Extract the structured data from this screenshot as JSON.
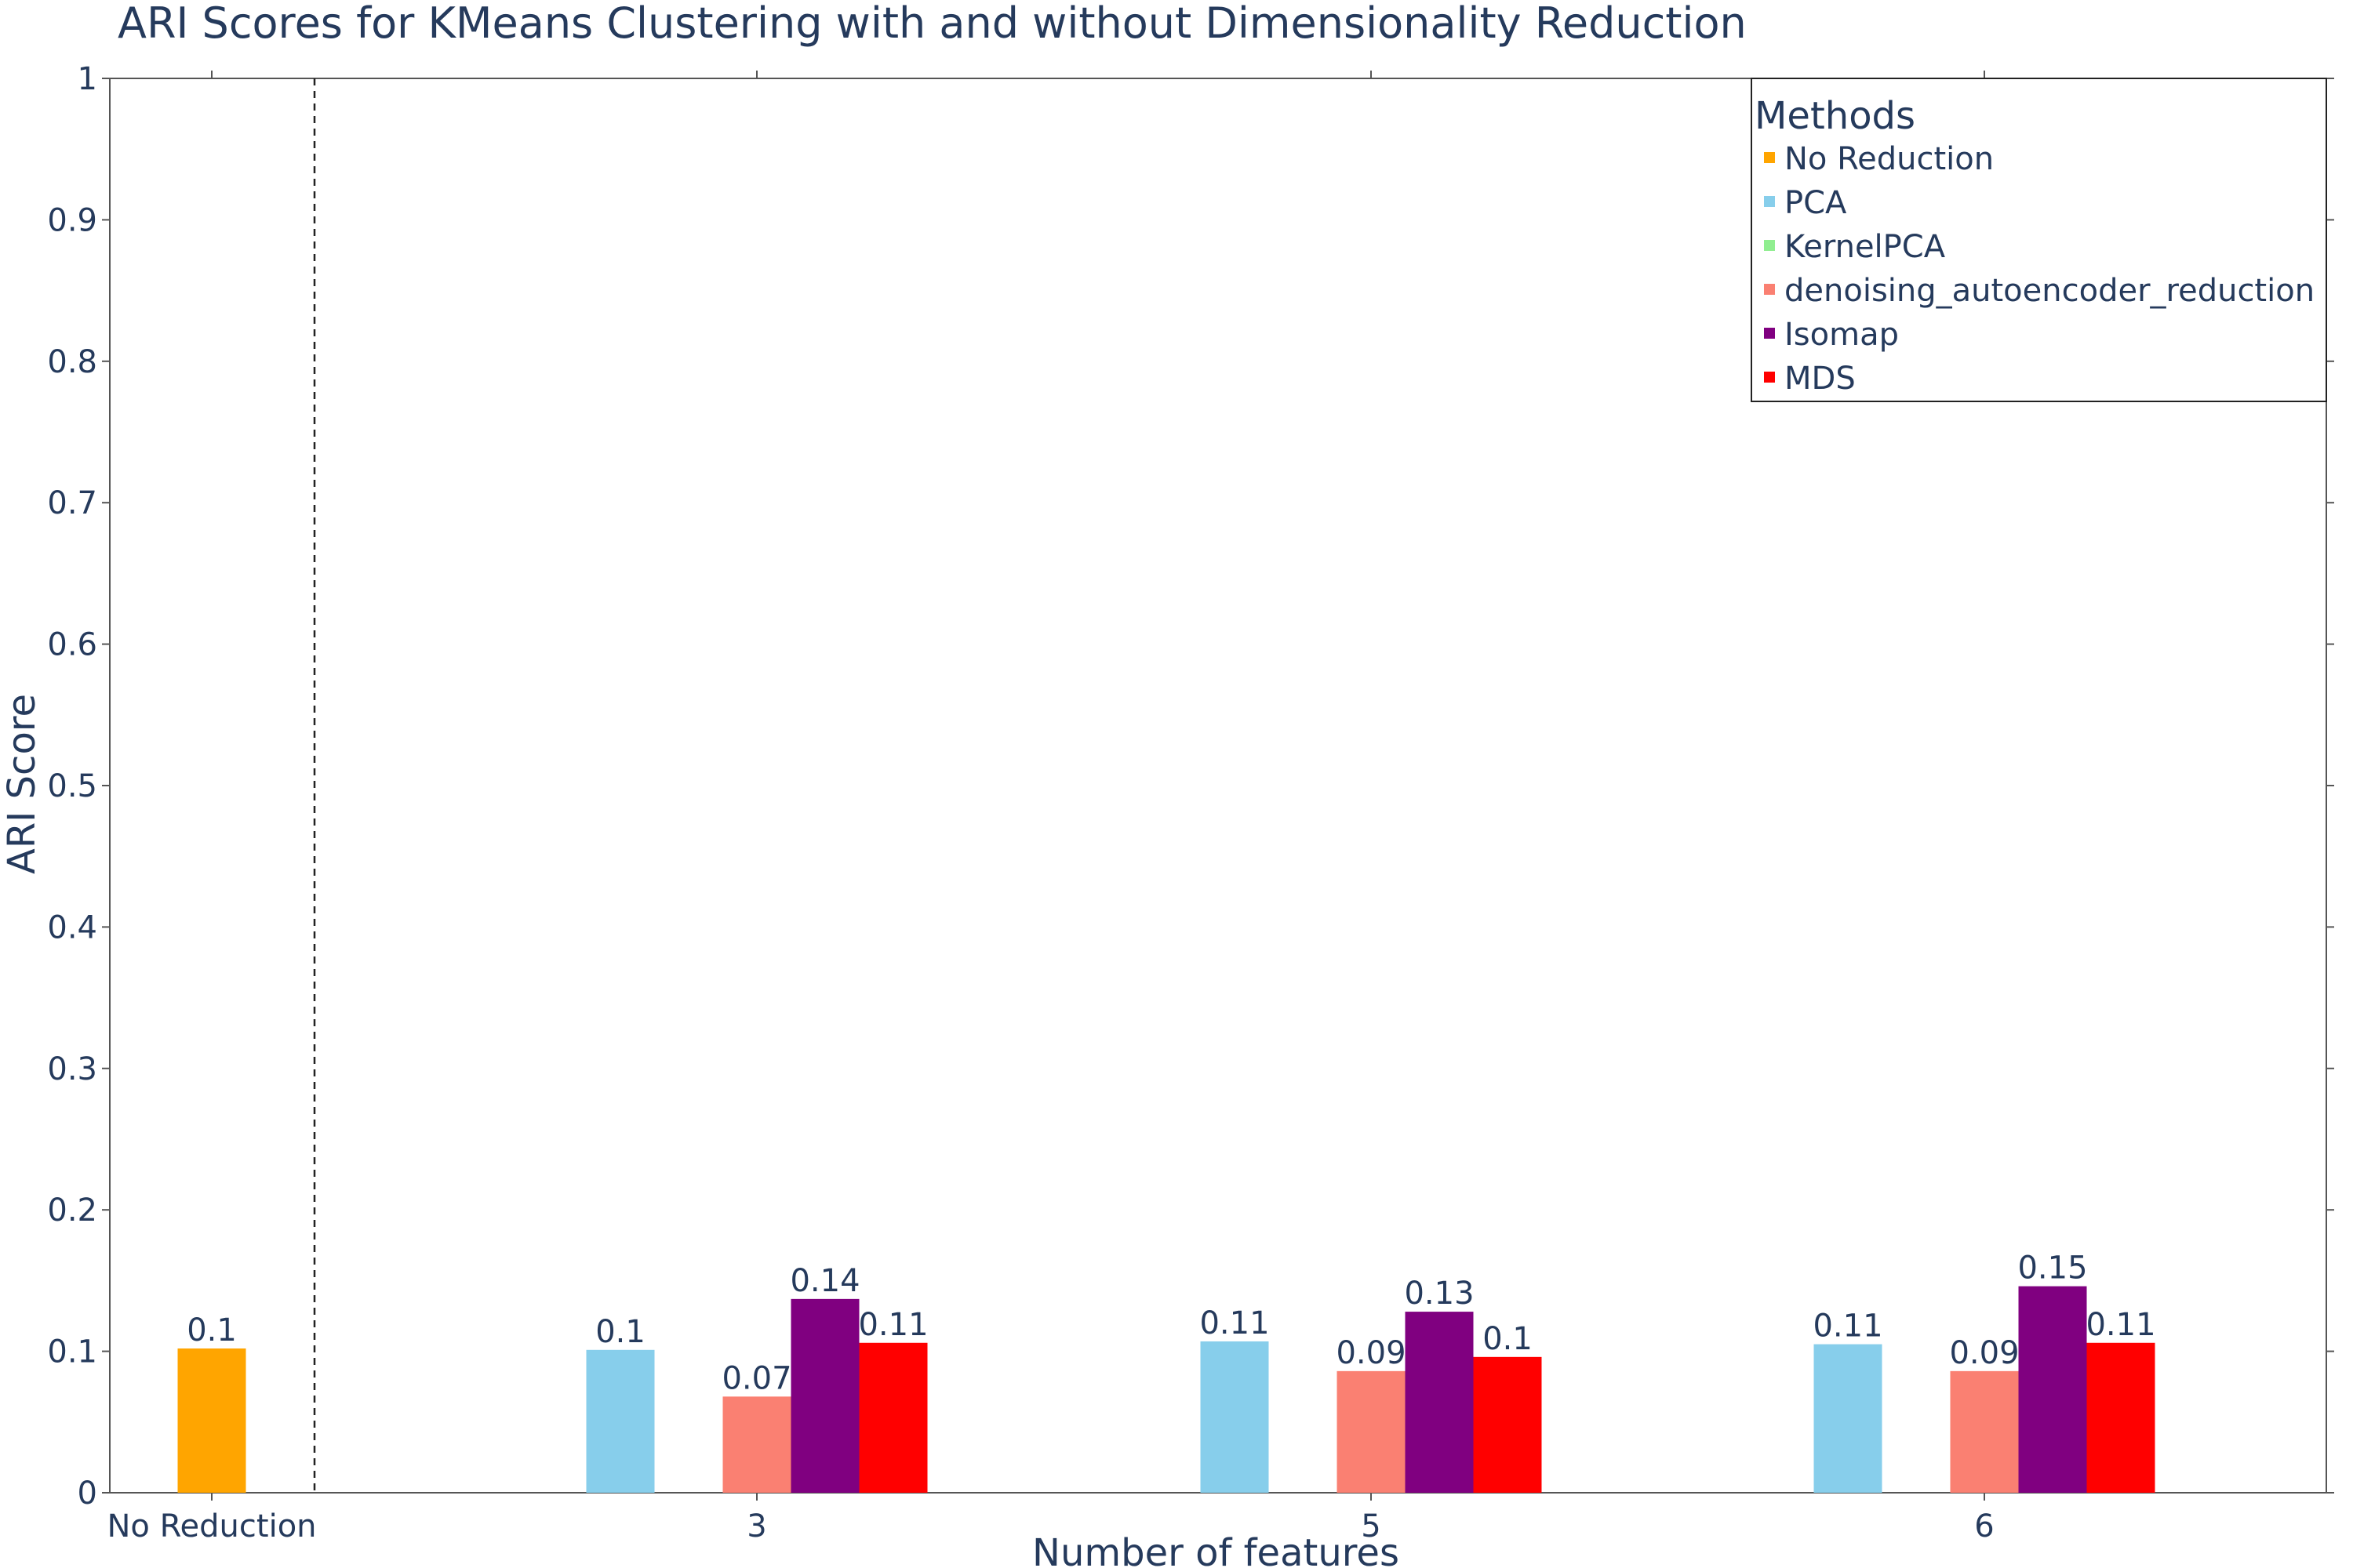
{
  "chart_data": {
    "type": "bar",
    "title": "ARI Scores for KMeans Clustering with and without Dimensionality Reduction",
    "xlabel": "Number of features",
    "ylabel": "ARI Score",
    "ylim": [
      0,
      1
    ],
    "yticks": [
      "0",
      "0.1",
      "0.2",
      "0.3",
      "0.4",
      "0.5",
      "0.6",
      "0.7",
      "0.8",
      "0.9",
      "1"
    ],
    "categories": [
      "No Reduction",
      "3",
      "5",
      "6"
    ],
    "legend": {
      "title": "Methods",
      "placement": "top-right",
      "entries": [
        {
          "name": "No Reduction",
          "color": "#FFA500"
        },
        {
          "name": "PCA",
          "color": "#87CEEB"
        },
        {
          "name": "KernelPCA",
          "color": "#90EE90"
        },
        {
          "name": "denoising_autoencoder_reduction",
          "color": "#FA8072"
        },
        {
          "name": "Isomap",
          "color": "#800080"
        },
        {
          "name": "MDS",
          "color": "#FF0000"
        }
      ]
    },
    "series": [
      {
        "name": "No Reduction",
        "color": "#FFA500",
        "values": [
          0.102,
          null,
          null,
          null
        ],
        "labels": [
          "0.1",
          null,
          null,
          null
        ]
      },
      {
        "name": "PCA",
        "color": "#87CEEB",
        "values": [
          null,
          0.101,
          0.107,
          0.105
        ],
        "labels": [
          null,
          "0.1",
          "0.11",
          "0.11"
        ]
      },
      {
        "name": "KernelPCA",
        "color": "#90EE90",
        "values": [
          null,
          null,
          null,
          null
        ],
        "labels": [
          null,
          null,
          null,
          null
        ]
      },
      {
        "name": "denoising_autoencoder_reduction",
        "color": "#FA8072",
        "values": [
          null,
          0.068,
          0.086,
          0.086
        ],
        "labels": [
          null,
          "0.07",
          "0.09",
          "0.09"
        ]
      },
      {
        "name": "Isomap",
        "color": "#800080",
        "values": [
          null,
          0.137,
          0.128,
          0.146
        ],
        "labels": [
          null,
          "0.14",
          "0.13",
          "0.15"
        ]
      },
      {
        "name": "MDS",
        "color": "#FF0000",
        "values": [
          null,
          0.106,
          0.096,
          0.106
        ],
        "labels": [
          null,
          "0.11",
          "0.1",
          "0.11"
        ]
      }
    ],
    "separator_after_category": "No Reduction",
    "grid": false
  }
}
